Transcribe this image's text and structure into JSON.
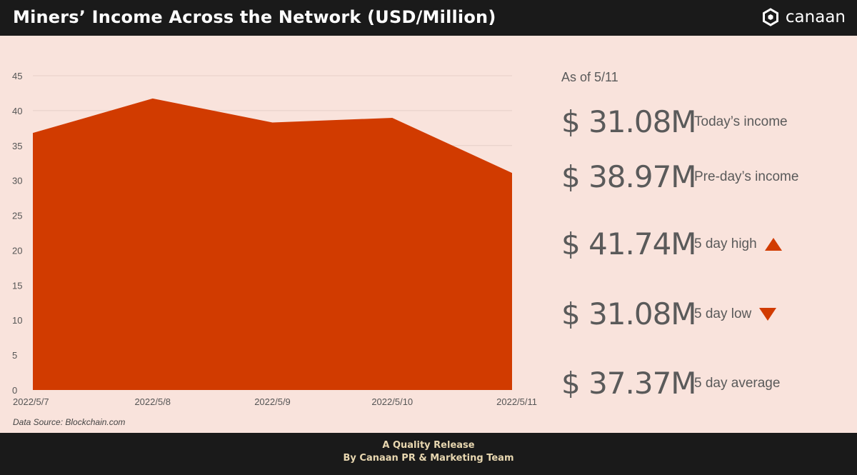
{
  "header": {
    "title": "Miners’ Income Across the Network (USD/Million)",
    "brand": "canaan"
  },
  "chart_data": {
    "type": "area",
    "title": "Miners’ Income Across the Network (USD/Million)",
    "categories": [
      "2022/5/7",
      "2022/5/8",
      "2022/5/9",
      "2022/5/10",
      "2022/5/11"
    ],
    "values": [
      36.8,
      41.74,
      38.3,
      38.97,
      31.08
    ],
    "ylim": [
      0,
      45
    ],
    "yticks": [
      0,
      5,
      10,
      15,
      20,
      25,
      30,
      35,
      40,
      45
    ],
    "grid": true,
    "color": "#d13b00"
  },
  "source": "Data Source: Blockchain.com",
  "stats": {
    "as_of": "As of 5/11",
    "items": [
      {
        "value": "$ 31.08M",
        "label": "Today’s income",
        "indicator": "none"
      },
      {
        "value": "$ 38.97M",
        "label": "Pre-day’s income",
        "indicator": "none"
      },
      {
        "value": "$ 41.74M",
        "label": "5 day high",
        "indicator": "triangle-up-icon"
      },
      {
        "value": "$ 31.08M",
        "label": "5 day low",
        "indicator": "triangle-down-icon"
      },
      {
        "value": "$ 37.37M",
        "label": "5 day average",
        "indicator": "none"
      }
    ]
  },
  "footer": {
    "line1": "A Quality Release",
    "line2": "By Canaan PR & Marketing Team"
  },
  "colors": {
    "accent": "#d13b00",
    "background": "#f9e3dc",
    "frame": "#1a1a1a",
    "footer_text": "#e8d7b0"
  }
}
